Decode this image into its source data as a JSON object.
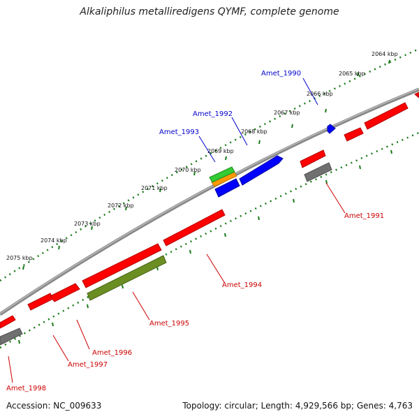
{
  "title": "Alkaliphilus metalliredigens QYMF, complete genome",
  "footer": {
    "accession": "Accession: NC_009633",
    "summary": "Topology: circular; Length: 4,929,566 bp; Genes: 4,763"
  },
  "colors": {
    "forward_gene": "#ff0000",
    "reverse_gene": "#0000ff",
    "backbone": "#808080",
    "tick": "#1a7a1a",
    "reverse_label": "#0000cc",
    "forward_label": "#cc0000",
    "pseudo_gene": "#6b8e23",
    "rna_orange": "#ff9900",
    "rna_green": "#33cc33"
  },
  "ticks": [
    "2064 kbp",
    "2065 kbp",
    "2066 kbp",
    "2067 kbp",
    "2068 kbp",
    "2069 kbp",
    "2070 kbp",
    "2071 kbp",
    "2072 kbp",
    "2073 kbp",
    "2074 kbp",
    "2075 kbp"
  ],
  "gene_labels": {
    "amet_1990": "Amet_1990",
    "amet_1991": "Amet_1991",
    "amet_1992": "Amet_1992",
    "amet_1993": "Amet_1993",
    "amet_1994": "Amet_1994",
    "amet_1995": "Amet_1995",
    "amet_1996": "Amet_1996",
    "amet_1997": "Amet_1997",
    "amet_1998": "Amet_1998"
  }
}
